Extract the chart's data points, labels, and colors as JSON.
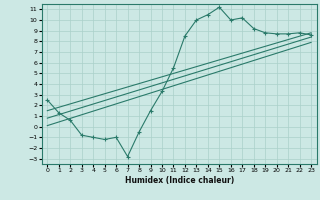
{
  "xlabel": "Humidex (Indice chaleur)",
  "ylabel": "",
  "bg_color": "#cce8e4",
  "grid_color": "#aad0ca",
  "line_color": "#2a7a6a",
  "xlim": [
    -0.5,
    23.5
  ],
  "ylim": [
    -3.5,
    11.5
  ],
  "xticks": [
    0,
    1,
    2,
    3,
    4,
    5,
    6,
    7,
    8,
    9,
    10,
    11,
    12,
    13,
    14,
    15,
    16,
    17,
    18,
    19,
    20,
    21,
    22,
    23
  ],
  "yticks": [
    -3,
    -2,
    -1,
    0,
    1,
    2,
    3,
    4,
    5,
    6,
    7,
    8,
    9,
    10,
    11
  ],
  "zigzag_x": [
    0,
    1,
    2,
    3,
    4,
    5,
    6,
    7,
    8,
    9,
    10,
    11,
    12,
    13,
    14,
    15,
    16,
    17,
    18,
    19,
    20,
    21,
    22,
    23
  ],
  "zigzag_y": [
    2.5,
    1.3,
    0.6,
    -0.8,
    -1.0,
    -1.2,
    -1.0,
    -2.8,
    -0.5,
    1.5,
    3.3,
    5.5,
    8.5,
    10.0,
    10.5,
    11.2,
    10.0,
    10.2,
    9.2,
    8.8,
    8.7,
    8.7,
    8.8,
    8.6
  ],
  "line1_x": [
    0,
    23
  ],
  "line1_y": [
    1.5,
    8.8
  ],
  "line2_x": [
    0,
    23
  ],
  "line2_y": [
    0.8,
    8.4
  ],
  "line3_x": [
    0,
    23
  ],
  "line3_y": [
    0.1,
    7.9
  ]
}
